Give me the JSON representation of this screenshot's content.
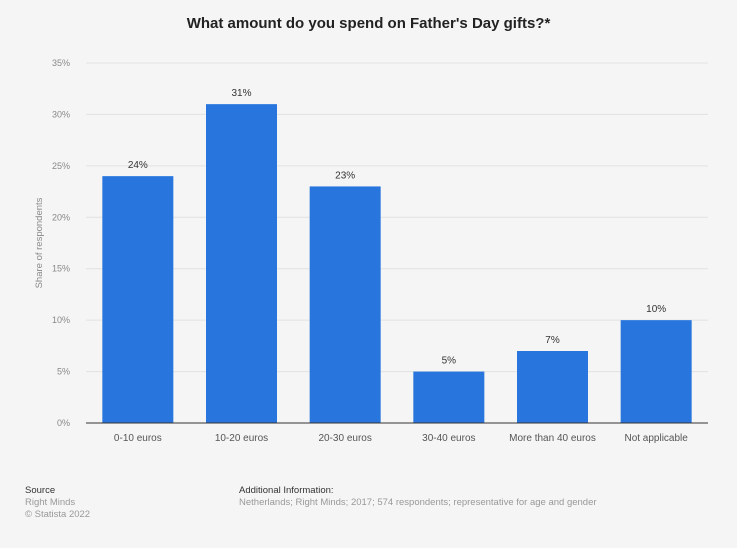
{
  "chart_data": {
    "type": "bar",
    "title": "What amount do you spend on Father's Day gifts?*",
    "ylabel": "Share of respondents",
    "xlabel": "",
    "categories": [
      "0-10 euros",
      "10-20 euros",
      "20-30 euros",
      "30-40 euros",
      "More than 40 euros",
      "Not applicable"
    ],
    "values": [
      24,
      31,
      23,
      5,
      7,
      10
    ],
    "data_labels": [
      "24%",
      "31%",
      "23%",
      "5%",
      "7%",
      "10%"
    ],
    "ylim": [
      0,
      35
    ],
    "yticks": [
      "0%",
      "5%",
      "10%",
      "15%",
      "20%",
      "25%",
      "30%",
      "35%"
    ],
    "grid": true,
    "bar_color": "#2876dd"
  },
  "footer": {
    "source_heading": "Source",
    "source_name": "Right Minds",
    "copyright": "© Statista 2022",
    "info_heading": "Additional Information:",
    "info_text": "Netherlands; Right Minds; 2017; 574 respondents; representative for age and gender"
  }
}
